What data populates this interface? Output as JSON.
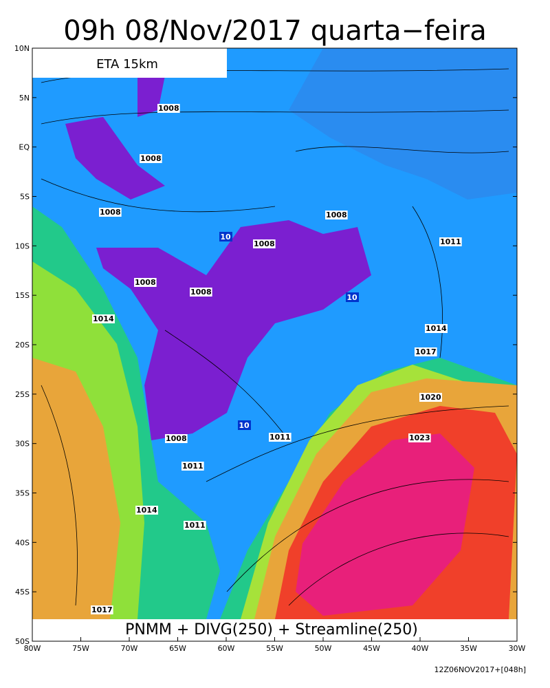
{
  "title": "09h 08/Nov/2017 quarta−feira",
  "model_label": "ETA 15km",
  "field_label": "PNMM + DIVG(250) + Streamline(250)",
  "run_label": "12Z06NOV2017+[048h]",
  "latitude_labels": [
    "10N",
    "5N",
    "EQ",
    "5S",
    "10S",
    "15S",
    "20S",
    "25S",
    "30S",
    "35S",
    "40S",
    "45S",
    "50S"
  ],
  "longitude_labels": [
    "80W",
    "75W",
    "70W",
    "65W",
    "60W",
    "55W",
    "50W",
    "45W",
    "40W",
    "35W",
    "30W"
  ],
  "isobar_labels": [
    "1008",
    "1008",
    "1008",
    "1008",
    "1008",
    "1011",
    "1008",
    "1008",
    "1014",
    "1014",
    "1017",
    "1020",
    "1023",
    "1008",
    "1011",
    "1011",
    "1014",
    "1011",
    "1017"
  ],
  "divergence_labels": [
    "10",
    "10",
    "10"
  ]
}
